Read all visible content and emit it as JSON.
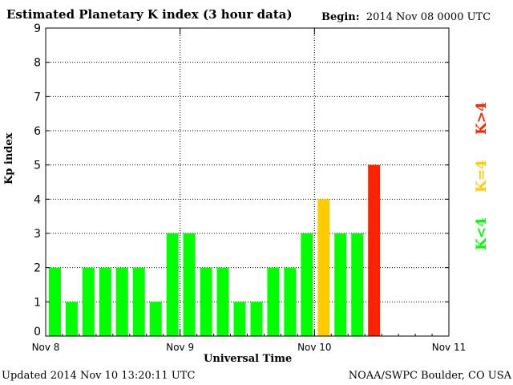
{
  "header": {
    "title": "Estimated Planetary K index (3 hour data)",
    "begin_label": "Begin:",
    "begin_value": "2014 Nov 08 0000 UTC"
  },
  "footer": {
    "updated_label": "Updated",
    "updated_value": "2014 Nov 10 13:20:11 UTC",
    "credit": "NOAA/SWPC Boulder, CO USA"
  },
  "legend": {
    "low": "K<4",
    "mid": "K=4",
    "high": "K>4",
    "colors": {
      "low": "#00ff00",
      "mid": "#ffcc00",
      "high": "#ff2200"
    }
  },
  "chart_data": {
    "type": "bar",
    "title": "Estimated Planetary K index (3 hour data)",
    "xlabel": "Universal Time",
    "ylabel": "Kp index",
    "ylim": [
      0,
      9
    ],
    "yticks": [
      "0",
      "1",
      "2",
      "3",
      "4",
      "5",
      "6",
      "7",
      "8",
      "9"
    ],
    "xticks": [
      "Nov 8",
      "Nov 9",
      "Nov 10",
      "Nov 11"
    ],
    "bins_per_day": 8,
    "values": [
      2,
      1,
      2,
      2,
      2,
      2,
      1,
      3,
      3,
      2,
      2,
      1,
      1,
      2,
      2,
      3,
      4,
      3,
      3,
      5
    ],
    "grid": true
  }
}
